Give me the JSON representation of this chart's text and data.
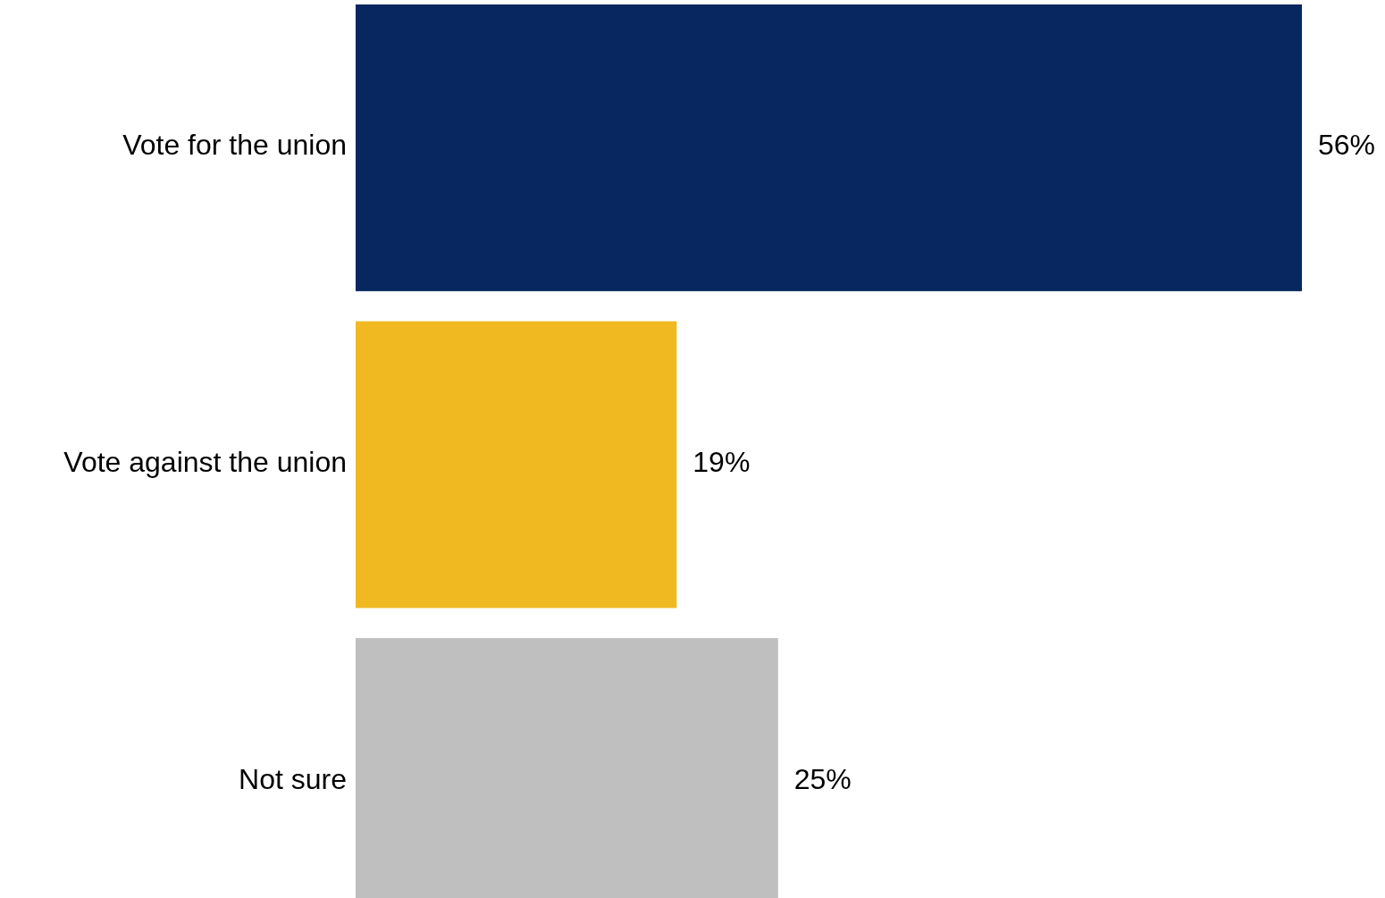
{
  "chart_data": {
    "type": "bar",
    "orientation": "horizontal",
    "categories": [
      "Vote for the union",
      "Vote against the union",
      "Not sure"
    ],
    "values": [
      56,
      19,
      25
    ],
    "colors": [
      "#08265f",
      "#f0b921",
      "#bfbfbf"
    ],
    "value_labels": [
      "56%",
      "19%",
      "25%"
    ],
    "grid": false
  }
}
